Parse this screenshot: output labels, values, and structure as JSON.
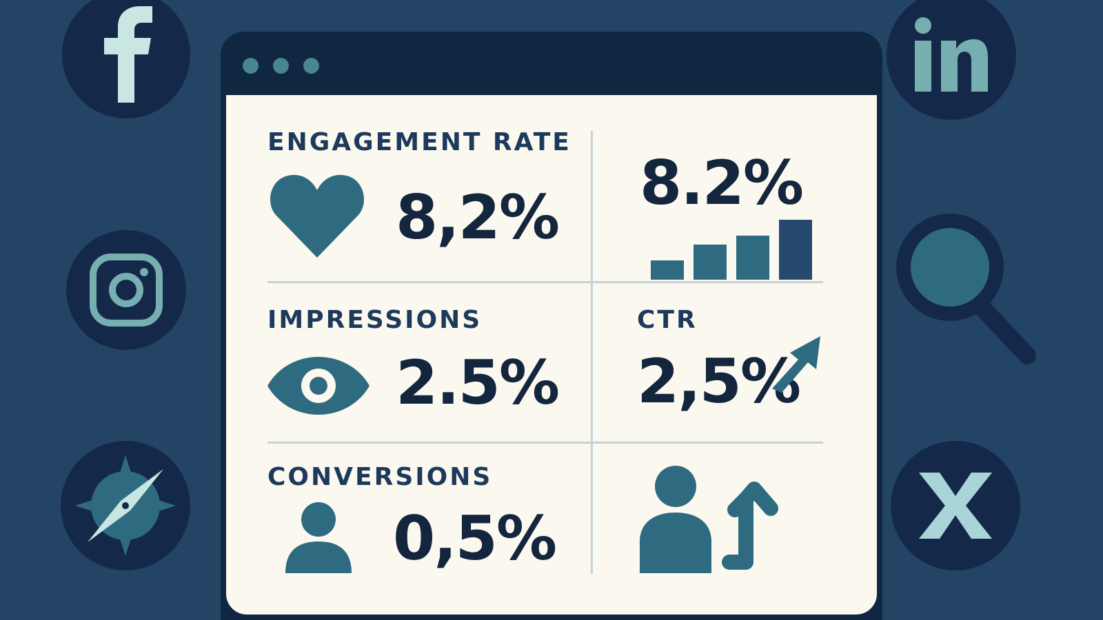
{
  "social_icons": [
    {
      "name": "facebook-icon",
      "side": "left"
    },
    {
      "name": "instagram-icon",
      "side": "left"
    },
    {
      "name": "compass-icon",
      "side": "left"
    },
    {
      "name": "linkedin-icon",
      "side": "right"
    },
    {
      "name": "search-icon",
      "side": "right"
    },
    {
      "name": "x-icon",
      "side": "right"
    }
  ],
  "dashboard": {
    "engagement": {
      "label": "ENGAGEMENT RATE",
      "value": "8,2%",
      "icon": "heart-icon"
    },
    "engagement_trend": {
      "value": "8.2%",
      "icon": "bar-chart-icon",
      "bars": [
        0.3,
        0.55,
        0.7,
        0.95
      ]
    },
    "impressions": {
      "label": "IMPRESSIONS",
      "value": "2.5%",
      "icon": "eye-icon"
    },
    "ctr": {
      "label": "CTR",
      "value": "2,5%",
      "icon": "arrow-up-right-icon"
    },
    "conversions": {
      "label": "CONVERSIONS",
      "value": "0,5%",
      "icon": "user-icon"
    },
    "growth": {
      "icon": "user-growth-icon"
    }
  },
  "colors": {
    "background": "#244466",
    "badge": "#14294a",
    "window": "#0f2740",
    "panel": "#fbf8ef",
    "accent_teal": "#2f6b80",
    "accent_light": "#c8e6e2",
    "text_dark": "#14253e"
  }
}
